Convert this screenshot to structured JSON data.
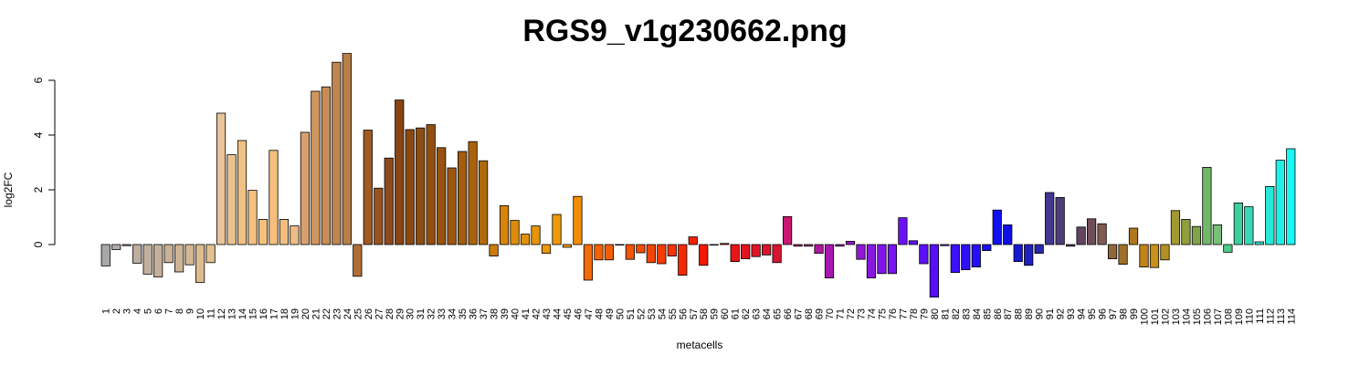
{
  "chart_data": {
    "type": "bar",
    "title": "RGS9_v1g230662.png",
    "xlabel": "metacells",
    "ylabel": "log2FC",
    "ylim": [
      -2,
      7
    ],
    "yticks": [
      0,
      2,
      4,
      6
    ],
    "grid": false,
    "legend": "none",
    "categories": [
      "1",
      "2",
      "3",
      "4",
      "5",
      "6",
      "7",
      "8",
      "9",
      "10",
      "11",
      "12",
      "13",
      "14",
      "15",
      "16",
      "17",
      "18",
      "19",
      "20",
      "21",
      "22",
      "23",
      "24",
      "25",
      "26",
      "27",
      "28",
      "29",
      "30",
      "31",
      "32",
      "33",
      "34",
      "35",
      "36",
      "37",
      "38",
      "39",
      "40",
      "41",
      "42",
      "43",
      "44",
      "45",
      "46",
      "47",
      "48",
      "49",
      "50",
      "51",
      "52",
      "53",
      "54",
      "55",
      "56",
      "57",
      "58",
      "59",
      "60",
      "61",
      "62",
      "63",
      "64",
      "65",
      "66",
      "67",
      "68",
      "69",
      "70",
      "71",
      "72",
      "73",
      "74",
      "75",
      "76",
      "77",
      "78",
      "79",
      "80",
      "81",
      "82",
      "83",
      "84",
      "85",
      "86",
      "87",
      "88",
      "89",
      "90",
      "91",
      "92",
      "93",
      "94",
      "95",
      "96",
      "97",
      "98",
      "99",
      "100",
      "101",
      "102",
      "103",
      "104",
      "105",
      "106",
      "107",
      "108",
      "109",
      "110",
      "111",
      "112",
      "113",
      "114"
    ],
    "values": [
      -0.78,
      -0.18,
      -0.04,
      -0.68,
      -1.08,
      -1.18,
      -0.66,
      -1.0,
      -0.74,
      -1.38,
      -0.66,
      4.8,
      3.28,
      3.8,
      1.98,
      0.92,
      3.44,
      0.92,
      0.68,
      4.1,
      5.6,
      5.76,
      6.66,
      6.98,
      -1.16,
      4.18,
      2.06,
      3.16,
      5.28,
      4.2,
      4.26,
      4.38,
      3.54,
      2.8,
      3.4,
      3.76,
      3.06,
      -0.42,
      1.42,
      0.88,
      0.38,
      0.68,
      -0.32,
      1.1,
      -0.1,
      1.76,
      -1.3,
      -0.56,
      -0.56,
      -0.02,
      -0.54,
      -0.3,
      -0.66,
      -0.7,
      -0.42,
      -1.12,
      0.28,
      -0.76,
      -0.02,
      0.04,
      -0.62,
      -0.52,
      -0.44,
      -0.38,
      -0.66,
      1.02,
      -0.06,
      -0.06,
      -0.32,
      -1.22,
      -0.06,
      0.12,
      -0.54,
      -1.22,
      -1.06,
      -1.06,
      0.98,
      0.14,
      -0.7,
      -1.92,
      -0.04,
      -1.02,
      -0.92,
      -0.82,
      -0.22,
      1.26,
      0.72,
      -0.62,
      -0.76,
      -0.32,
      1.9,
      1.72,
      -0.06,
      0.64,
      0.94,
      0.76,
      -0.52,
      -0.72,
      0.6,
      -0.82,
      -0.84,
      -0.56,
      1.24,
      0.92,
      0.66,
      2.82,
      0.72,
      -0.28,
      1.52,
      1.38,
      0.1,
      2.12,
      3.08,
      3.5
    ],
    "colors": [
      "#a8a8a8",
      "#b0aaa6",
      "#b7aca2",
      "#bdaea0",
      "#c2b09e",
      "#c6b09c",
      "#cab29a",
      "#ceb497",
      "#d4b893",
      "#dcbc90",
      "#e2c08f",
      "#e8c49a",
      "#ecc28f",
      "#f0c184",
      "#f2c080",
      "#f4c07e",
      "#f4be7c",
      "#f2bd80",
      "#eebc86",
      "#d8a070",
      "#d0965e",
      "#c88c56",
      "#c08650",
      "#b87e48",
      "#b06e36",
      "#a05a22",
      "#985220",
      "#8e4a1c",
      "#884412",
      "#8a4812",
      "#8e4c10",
      "#924e10",
      "#985210",
      "#9e5610",
      "#a45c0e",
      "#aa620c",
      "#b06a0c",
      "#cc7c0a",
      "#d8840a",
      "#de8a0a",
      "#e29008",
      "#e69408",
      "#ea9808",
      "#ee9a08",
      "#f09c08",
      "#f48c06",
      "#f46a04",
      "#f46204",
      "#f45e04",
      "#f45a04",
      "#f45404",
      "#f44c04",
      "#f44404",
      "#f43c04",
      "#f43404",
      "#f42a04",
      "#f42004",
      "#f41804",
      "#f01404",
      "#ec1410",
      "#e81418",
      "#e4141e",
      "#e01424",
      "#dc142a",
      "#d81430",
      "#c81870",
      "#c01880",
      "#b81890",
      "#b018a0",
      "#a818b0",
      "#a018bc",
      "#9818c8",
      "#9018d4",
      "#8818e0",
      "#8014ea",
      "#7814f2",
      "#6c10f4",
      "#6410f6",
      "#5c10f6",
      "#5410f8",
      "#4810f8",
      "#3c10f8",
      "#3010f8",
      "#2410f8",
      "#1810f8",
      "#1010f0",
      "#1010e4",
      "#1818d4",
      "#2020c0",
      "#2828a8",
      "#403890",
      "#4c3c7c",
      "#58406c",
      "#604460",
      "#704c58",
      "#805a50",
      "#906838",
      "#a07028",
      "#b0781c",
      "#c08418",
      "#c8901c",
      "#b49024",
      "#a09a30",
      "#909e3c",
      "#80a248",
      "#70b868",
      "#78c078",
      "#50c888",
      "#40d0a0",
      "#38d8b8",
      "#30e0c8",
      "#28e8d8",
      "#20f0e4",
      "#18f8f4"
    ]
  }
}
